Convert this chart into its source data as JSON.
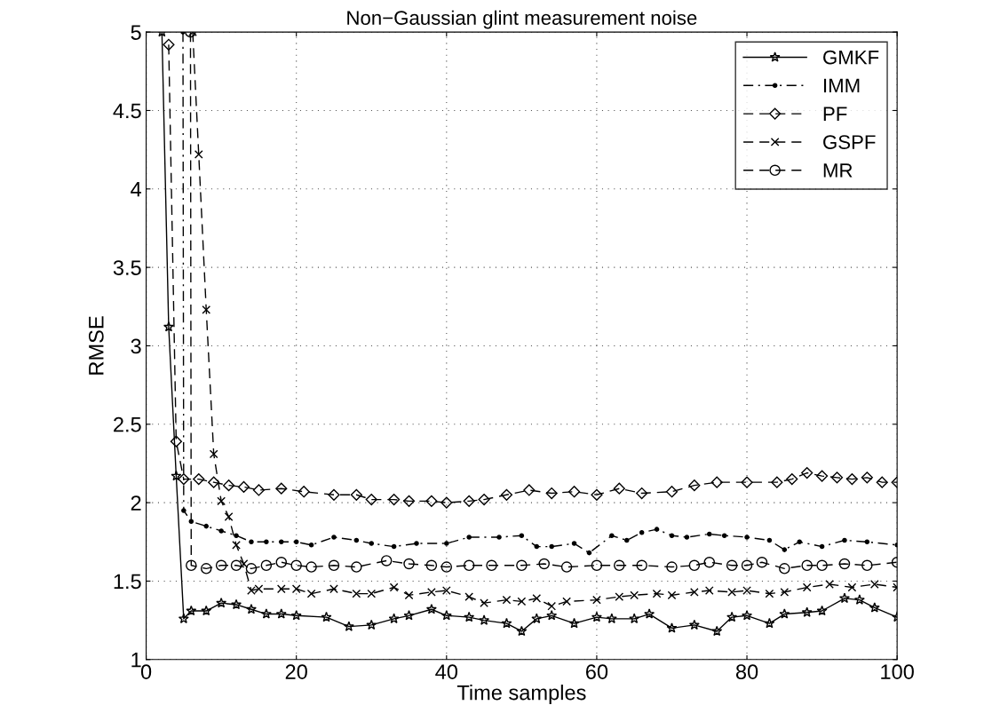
{
  "chart_data": {
    "type": "line",
    "title": "Non−Gaussian glint measurement noise",
    "xlabel": "Time samples",
    "ylabel": "RMSE",
    "xlim": [
      0,
      100
    ],
    "ylim": [
      1,
      5
    ],
    "xticks": [
      0,
      20,
      40,
      60,
      80,
      100
    ],
    "yticks": [
      1,
      1.5,
      2,
      2.5,
      3,
      3.5,
      4,
      4.5,
      5
    ],
    "grid": true,
    "legend": "top right",
    "series": [
      {
        "name": "GMKF",
        "color": "#000000",
        "marker": "star",
        "line_style": "solid",
        "x": [
          2.1,
          3,
          4,
          5,
          6,
          8,
          10,
          12,
          14,
          16,
          18,
          20,
          24,
          27,
          30,
          33,
          35,
          38,
          40,
          43,
          45,
          48,
          50,
          52,
          54,
          57,
          60,
          62,
          65,
          67,
          70,
          73,
          76,
          78,
          80,
          83,
          85,
          88,
          90,
          93,
          95,
          97,
          100
        ],
        "values": [
          5,
          3.12,
          2.17,
          1.26,
          1.31,
          1.31,
          1.36,
          1.35,
          1.32,
          1.29,
          1.29,
          1.28,
          1.27,
          1.21,
          1.22,
          1.26,
          1.28,
          1.32,
          1.28,
          1.27,
          1.25,
          1.23,
          1.18,
          1.26,
          1.28,
          1.23,
          1.27,
          1.26,
          1.26,
          1.29,
          1.2,
          1.22,
          1.18,
          1.27,
          1.28,
          1.23,
          1.29,
          1.3,
          1.31,
          1.39,
          1.38,
          1.33,
          1.27
        ]
      },
      {
        "name": "IMM",
        "color": "#000000",
        "marker": "point",
        "line_style": "dashdot",
        "x": [
          4.9,
          5,
          6,
          8,
          10,
          12,
          14,
          16,
          18,
          20,
          22,
          25,
          28,
          30,
          33,
          36,
          40,
          43,
          47,
          50,
          52,
          54,
          57,
          59,
          62,
          64,
          66,
          68,
          70,
          72,
          75,
          77,
          80,
          83,
          85,
          87,
          90,
          93,
          96,
          100
        ],
        "values": [
          5,
          1.95,
          1.88,
          1.85,
          1.82,
          1.79,
          1.75,
          1.75,
          1.75,
          1.75,
          1.73,
          1.78,
          1.76,
          1.74,
          1.72,
          1.74,
          1.74,
          1.78,
          1.78,
          1.79,
          1.72,
          1.72,
          1.74,
          1.68,
          1.79,
          1.76,
          1.81,
          1.83,
          1.79,
          1.78,
          1.8,
          1.79,
          1.78,
          1.76,
          1.7,
          1.75,
          1.72,
          1.76,
          1.75,
          1.73
        ]
      },
      {
        "name": "PF",
        "color": "#000000",
        "marker": "diamond",
        "line_style": "dashed",
        "x": [
          3,
          4,
          5,
          7,
          9,
          11,
          13,
          15,
          18,
          21,
          25,
          28,
          30,
          33,
          35,
          38,
          40,
          43,
          45,
          48,
          51,
          54,
          57,
          60,
          63,
          66,
          70,
          73,
          76,
          80,
          84,
          86,
          88,
          90,
          92,
          94,
          96,
          98,
          100
        ],
        "values": [
          4.92,
          2.39,
          2.15,
          2.15,
          2.13,
          2.11,
          2.1,
          2.08,
          2.09,
          2.07,
          2.05,
          2.05,
          2.02,
          2.02,
          2.01,
          2.01,
          2.0,
          2.01,
          2.02,
          2.05,
          2.08,
          2.06,
          2.07,
          2.05,
          2.09,
          2.06,
          2.07,
          2.11,
          2.13,
          2.13,
          2.13,
          2.15,
          2.19,
          2.17,
          2.16,
          2.15,
          2.16,
          2.13,
          2.13
        ]
      },
      {
        "name": "GSPF",
        "color": "#000000",
        "marker": "cross",
        "line_style": "dashed",
        "x": [
          6.2,
          7,
          8,
          9,
          10,
          11,
          12,
          13,
          14,
          15,
          18,
          20,
          22,
          25,
          28,
          30,
          33,
          35,
          38,
          40,
          43,
          45,
          48,
          50,
          52,
          54,
          56,
          60,
          63,
          65,
          68,
          70,
          73,
          75,
          78,
          80,
          83,
          85,
          88,
          91,
          94,
          97,
          100
        ],
        "values": [
          5,
          4.22,
          3.23,
          2.31,
          2.01,
          1.91,
          1.73,
          1.61,
          1.44,
          1.45,
          1.45,
          1.45,
          1.42,
          1.45,
          1.42,
          1.42,
          1.46,
          1.41,
          1.43,
          1.44,
          1.4,
          1.36,
          1.38,
          1.37,
          1.39,
          1.34,
          1.37,
          1.38,
          1.4,
          1.41,
          1.42,
          1.41,
          1.43,
          1.44,
          1.43,
          1.44,
          1.42,
          1.43,
          1.46,
          1.48,
          1.46,
          1.48,
          1.46
        ]
      },
      {
        "name": "MR",
        "color": "#000000",
        "marker": "circle",
        "line_style": "dashed",
        "x": [
          5.9,
          6,
          8,
          10,
          12,
          14,
          16,
          18,
          20,
          22,
          25,
          28,
          32,
          35,
          38,
          40,
          43,
          46,
          50,
          53,
          56,
          60,
          63,
          66,
          70,
          73,
          75,
          78,
          80,
          82,
          85,
          88,
          90,
          93,
          96,
          100
        ],
        "values": [
          5,
          1.6,
          1.58,
          1.6,
          1.6,
          1.58,
          1.6,
          1.62,
          1.6,
          1.59,
          1.6,
          1.59,
          1.63,
          1.61,
          1.6,
          1.59,
          1.6,
          1.6,
          1.6,
          1.61,
          1.59,
          1.6,
          1.6,
          1.6,
          1.59,
          1.6,
          1.62,
          1.6,
          1.6,
          1.62,
          1.58,
          1.6,
          1.6,
          1.61,
          1.6,
          1.62
        ]
      }
    ]
  }
}
